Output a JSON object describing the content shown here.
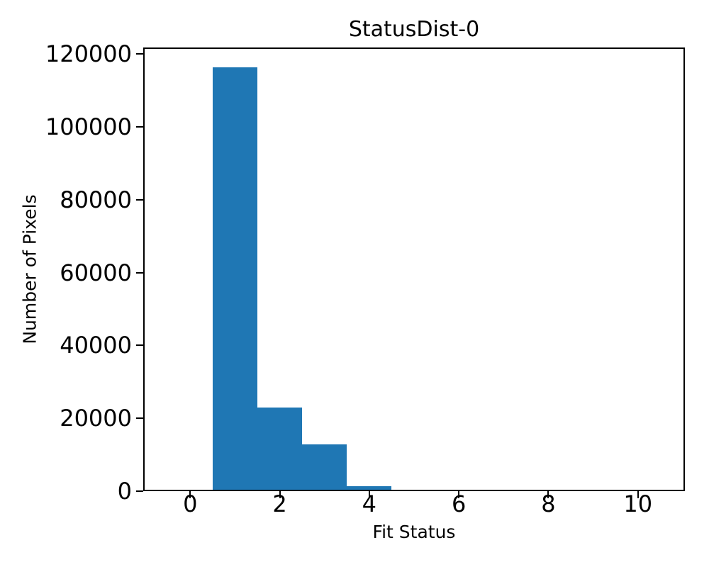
{
  "chart_data": {
    "type": "bar",
    "subtype": "histogram",
    "title": "StatusDist-0",
    "xlabel": "Fit Status",
    "ylabel": "Number of Pixels",
    "bin_centers": [
      0,
      1,
      2,
      3,
      4,
      5,
      6,
      7,
      8,
      9,
      10
    ],
    "bin_width": 1,
    "counts": [
      0,
      116000,
      22500,
      12400,
      1000,
      0,
      0,
      0,
      0,
      0,
      0
    ],
    "xticks": [
      0,
      2,
      4,
      6,
      8,
      10
    ],
    "yticks": [
      0,
      20000,
      40000,
      60000,
      80000,
      100000,
      120000
    ],
    "xlim": [
      -1.05,
      11.05
    ],
    "ylim": [
      0,
      121800
    ],
    "bar_color": "#1f77b4",
    "axis_color": "#000000",
    "background_color": "#ffffff",
    "grid": false,
    "legend": null
  }
}
